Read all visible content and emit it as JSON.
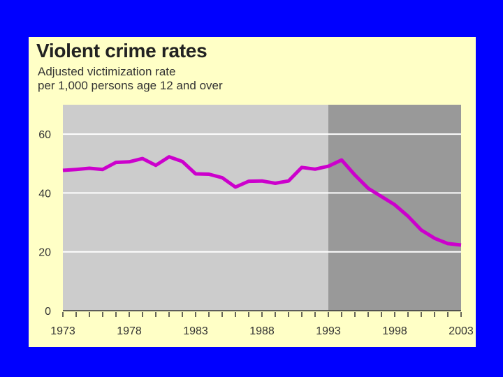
{
  "chart_data": {
    "type": "line",
    "title": "Violent crime rates",
    "subtitle_lines": [
      "Adjusted victimization rate",
      "per 1,000 persons age 12 and over"
    ],
    "xlabel": "",
    "ylabel": "",
    "xlim": [
      1973,
      2003
    ],
    "ylim": [
      0,
      70
    ],
    "yticks": [
      0,
      20,
      40,
      60
    ],
    "xticks": [
      1973,
      1978,
      1983,
      1988,
      1993,
      1998,
      2003
    ],
    "shaded_region": {
      "from": 1993,
      "to": 2003
    },
    "series": [
      {
        "name": "Violent crime rate",
        "color": "#cc00cc",
        "x": [
          1973,
          1974,
          1975,
          1976,
          1977,
          1978,
          1979,
          1980,
          1981,
          1982,
          1983,
          1984,
          1985,
          1986,
          1987,
          1988,
          1989,
          1990,
          1991,
          1992,
          1993,
          1994,
          1995,
          1996,
          1997,
          1998,
          1999,
          2000,
          2001,
          2002,
          2003
        ],
        "values": [
          47.7,
          48.0,
          48.4,
          48.0,
          50.4,
          50.6,
          51.7,
          49.4,
          52.3,
          50.7,
          46.5,
          46.4,
          45.2,
          42.0,
          44.0,
          44.1,
          43.3,
          44.1,
          48.7,
          48.1,
          49.1,
          51.2,
          46.1,
          41.6,
          38.8,
          36.0,
          32.1,
          27.4,
          24.6,
          22.8,
          22.3
        ]
      }
    ],
    "colors": {
      "background": "#0000ff",
      "panel": "#ffffc6",
      "plot_area": "#cccccc",
      "shaded_area": "#999999",
      "gridline": "#ffffff"
    }
  }
}
